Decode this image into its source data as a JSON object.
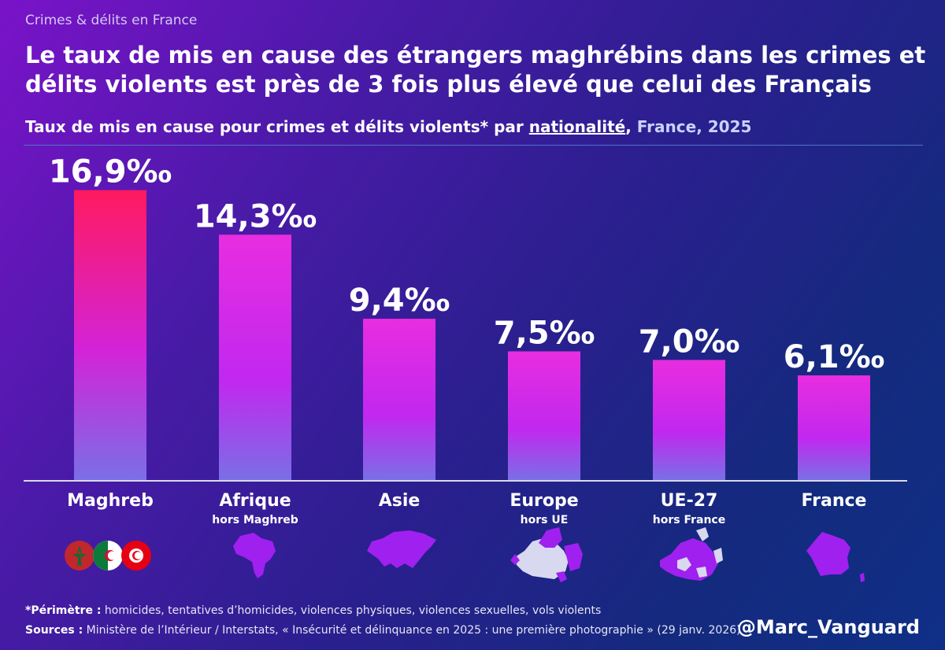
{
  "kicker": "Crimes & délits en France",
  "headline": "Le taux de mis en cause des étrangers maghrébins dans les crimes et délits violents est près de 3 fois plus élevé que celui des Français",
  "subtitle": {
    "part1": "Taux de mis en cause pour crimes et délits violents* par ",
    "underlined": "nationalité",
    "part2": ",",
    "part3": " France, 2025"
  },
  "chart_data": {
    "type": "bar",
    "categories": [
      "Maghreb",
      "Afrique",
      "Asie",
      "Europe",
      "UE-27",
      "France"
    ],
    "sublabels": [
      "",
      "hors Maghreb",
      "",
      "hors UE",
      "hors France",
      ""
    ],
    "values": [
      16.9,
      14.3,
      9.4,
      7.5,
      7.0,
      6.1
    ],
    "value_labels": [
      "16,9‰",
      "14,3‰",
      "9,4‰",
      "7,5‰",
      "7,0‰",
      "6,1‰"
    ],
    "ylim": [
      0,
      20
    ],
    "grid": false,
    "colors": {
      "highlight_top": "#ff1a5f",
      "top": "#e82de0",
      "bottom": "#7a6fe6"
    }
  },
  "icons": [
    "flags-maghreb-icon",
    "africa-map-icon",
    "asia-map-icon",
    "europe-map-icon",
    "eu27-map-icon",
    "france-map-icon"
  ],
  "footnote": {
    "perimetre_label": "*Périmètre :",
    "perimetre_text": " homicides, tentatives d’homicides, violences physiques, violences sexuelles, vols violents",
    "sources_label": "Sources :",
    "sources_text": " Ministère de l’Intérieur / Interstats, « Insécurité et délinquance en 2025 : une première photographie » (29 janv. 2026)"
  },
  "handle": "@Marc_Vanguard"
}
